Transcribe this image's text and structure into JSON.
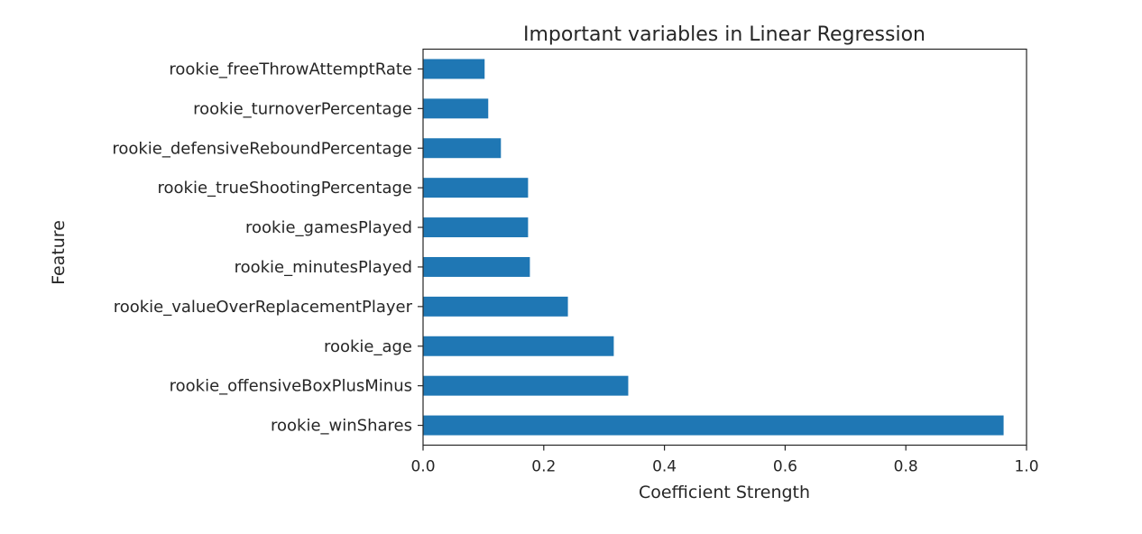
{
  "chart_data": {
    "type": "bar",
    "orientation": "horizontal",
    "title": "Important variables in Linear Regression",
    "xlabel": "Coefficient Strength",
    "ylabel": "Feature",
    "xlim": [
      0.0,
      1.0
    ],
    "xticks": [
      "0.0",
      "0.2",
      "0.4",
      "0.6",
      "0.8",
      "1.0"
    ],
    "grid": false,
    "bar_color": "#1f77b4",
    "categories": [
      "rookie_freeThrowAttemptRate",
      "rookie_turnoverPercentage",
      "rookie_defensiveReboundPercentage",
      "rookie_trueShootingPercentage",
      "rookie_gamesPlayed",
      "rookie_minutesPlayed",
      "rookie_valueOverReplacementPlayer",
      "rookie_age",
      "rookie_offensiveBoxPlusMinus",
      "rookie_winShares"
    ],
    "values": [
      0.102,
      0.108,
      0.129,
      0.174,
      0.174,
      0.177,
      0.24,
      0.316,
      0.34,
      0.962
    ]
  }
}
